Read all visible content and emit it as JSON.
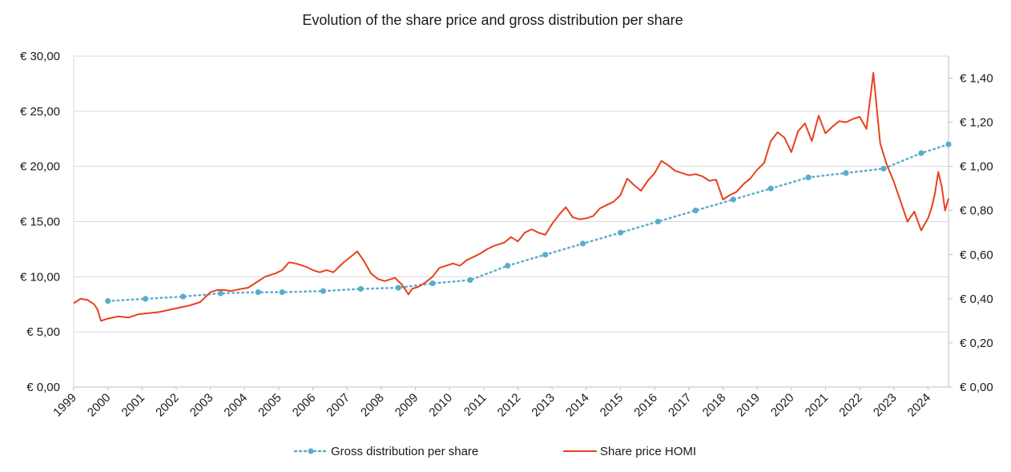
{
  "chart_data": {
    "type": "line",
    "title": "Evolution of the share price and gross distribution per share",
    "y_left": {
      "ticks": [
        "€ 0,00",
        "€ 5,00",
        "€ 10,00",
        "€ 15,00",
        "€ 20,00",
        "€ 25,00",
        "€ 30,00"
      ],
      "ylim": [
        0,
        30
      ]
    },
    "y_right": {
      "ticks": [
        "€ 0,00",
        "€ 0,20",
        "€ 0,40",
        "€ 0,60",
        "€ 0,80",
        "€ 1,00",
        "€ 1,20",
        "€ 1,40"
      ],
      "ylim": [
        0,
        1.5
      ]
    },
    "x_ticks": [
      "1999",
      "2000",
      "2001",
      "2002",
      "2003",
      "2004",
      "2005",
      "2006",
      "2007",
      "2008",
      "2009",
      "2010",
      "2011",
      "2012",
      "2013",
      "2014",
      "2015",
      "2016",
      "2017",
      "2018",
      "2019",
      "2020",
      "2021",
      "2022",
      "2023",
      "2024"
    ],
    "xlim": [
      1999.0,
      2024.6
    ],
    "grid": true,
    "legend_position": "bottom",
    "series": [
      {
        "name": "Gross distribution per share",
        "axis": "right",
        "style": "dotted-markers",
        "color": "#5aadca",
        "x": [
          2000.0,
          2001.1,
          2002.2,
          2003.3,
          2004.4,
          2005.1,
          2006.3,
          2007.4,
          2008.5,
          2009.5,
          2010.6,
          2011.7,
          2012.8,
          2013.9,
          2015.0,
          2016.1,
          2017.2,
          2018.3,
          2019.4,
          2020.5,
          2021.6,
          2022.7,
          2023.8,
          2024.6
        ],
        "values": [
          0.39,
          0.4,
          0.41,
          0.425,
          0.43,
          0.43,
          0.435,
          0.445,
          0.45,
          0.47,
          0.485,
          0.55,
          0.6,
          0.65,
          0.7,
          0.75,
          0.8,
          0.85,
          0.9,
          0.95,
          0.97,
          0.99,
          1.06,
          1.1
        ]
      },
      {
        "name": "Share price HOMI",
        "axis": "left",
        "style": "line",
        "color": "#e8411e",
        "x": [
          1999.0,
          1999.2,
          1999.4,
          1999.6,
          1999.7,
          1999.8,
          2000.0,
          2000.3,
          2000.6,
          2000.9,
          2001.2,
          2001.5,
          2001.8,
          2002.1,
          2002.4,
          2002.7,
          2003.0,
          2003.2,
          2003.4,
          2003.6,
          2003.9,
          2004.1,
          2004.3,
          2004.6,
          2004.9,
          2005.1,
          2005.3,
          2005.5,
          2005.8,
          2006.0,
          2006.2,
          2006.4,
          2006.6,
          2006.9,
          2007.1,
          2007.3,
          2007.5,
          2007.7,
          2007.9,
          2008.1,
          2008.4,
          2008.6,
          2008.8,
          2008.9,
          2009.1,
          2009.3,
          2009.5,
          2009.7,
          2009.9,
          2010.1,
          2010.3,
          2010.5,
          2010.7,
          2010.9,
          2011.1,
          2011.3,
          2011.6,
          2011.8,
          2012.0,
          2012.2,
          2012.4,
          2012.6,
          2012.8,
          2013.0,
          2013.2,
          2013.4,
          2013.6,
          2013.8,
          2014.0,
          2014.2,
          2014.4,
          2014.6,
          2014.8,
          2015.0,
          2015.2,
          2015.4,
          2015.6,
          2015.8,
          2016.0,
          2016.2,
          2016.4,
          2016.6,
          2016.8,
          2017.0,
          2017.2,
          2017.4,
          2017.6,
          2017.8,
          2018.0,
          2018.2,
          2018.4,
          2018.6,
          2018.8,
          2019.0,
          2019.2,
          2019.4,
          2019.6,
          2019.8,
          2020.0,
          2020.2,
          2020.4,
          2020.6,
          2020.8,
          2021.0,
          2021.2,
          2021.4,
          2021.6,
          2021.8,
          2022.0,
          2022.2,
          2022.4,
          2022.6,
          2022.8,
          2023.0,
          2023.2,
          2023.4,
          2023.6,
          2023.8,
          2024.0,
          2024.1,
          2024.2,
          2024.3,
          2024.4,
          2024.5,
          2024.6
        ],
        "values": [
          7.6,
          8.0,
          7.9,
          7.5,
          7.0,
          6.0,
          6.2,
          6.4,
          6.3,
          6.6,
          6.7,
          6.8,
          7.0,
          7.2,
          7.4,
          7.7,
          8.6,
          8.8,
          8.8,
          8.7,
          8.9,
          9.0,
          9.4,
          10.0,
          10.3,
          10.6,
          11.3,
          11.2,
          10.9,
          10.6,
          10.4,
          10.6,
          10.4,
          11.3,
          11.8,
          12.3,
          11.4,
          10.3,
          9.8,
          9.6,
          9.9,
          9.3,
          8.4,
          8.9,
          9.1,
          9.5,
          10.0,
          10.8,
          11.0,
          11.2,
          11.0,
          11.5,
          11.8,
          12.1,
          12.5,
          12.8,
          13.1,
          13.6,
          13.2,
          14.0,
          14.3,
          14.0,
          13.8,
          14.8,
          15.6,
          16.3,
          15.4,
          15.2,
          15.3,
          15.5,
          16.2,
          16.5,
          16.8,
          17.4,
          18.9,
          18.3,
          17.8,
          18.7,
          19.4,
          20.5,
          20.1,
          19.6,
          19.4,
          19.2,
          19.3,
          19.1,
          18.7,
          18.8,
          17.0,
          17.4,
          17.7,
          18.4,
          18.9,
          19.7,
          20.3,
          22.3,
          23.1,
          22.6,
          21.3,
          23.2,
          23.9,
          22.3,
          24.6,
          23.0,
          23.6,
          24.1,
          24.0,
          24.3,
          24.5,
          23.4,
          28.5,
          22.1,
          20.1,
          18.6,
          16.8,
          15.0,
          15.9,
          14.2,
          15.3,
          16.2,
          17.5,
          19.5,
          18.2,
          16.0,
          17.1
        ]
      }
    ]
  },
  "legend": {
    "series_1_label": "Gross distribution per share",
    "series_2_label": "Share price HOMI"
  }
}
